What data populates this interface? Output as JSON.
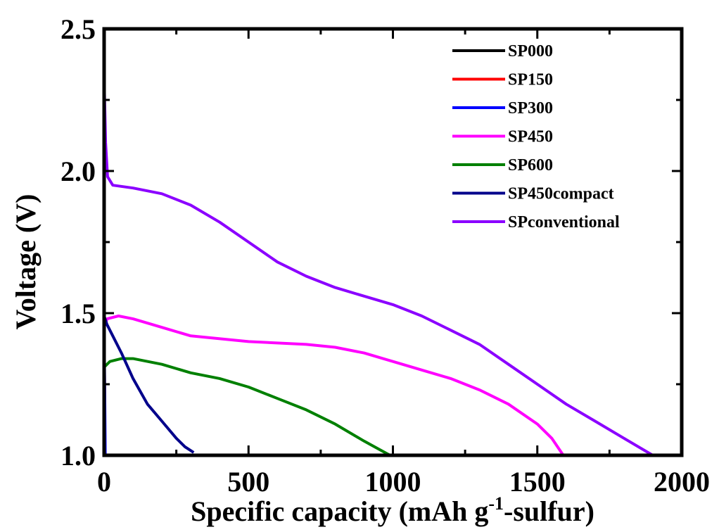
{
  "chart_data": {
    "type": "line",
    "xlabel_main": "Specific capacity (mAh g",
    "xlabel_sup": "-1",
    "xlabel_tail": "-sulfur)",
    "ylabel": "Voltage (V)",
    "xlim": [
      0,
      2000
    ],
    "ylim": [
      1.0,
      2.5
    ],
    "xticks": [
      0,
      500,
      1000,
      1500,
      2000
    ],
    "xtick_labels": [
      "0",
      "500",
      "1000",
      "1500",
      "2000"
    ],
    "yticks": [
      1.0,
      1.5,
      2.0,
      2.5
    ],
    "ytick_labels": [
      "1.0",
      "1.5",
      "2.0",
      "2.5"
    ],
    "grid": false,
    "legend_position": "top-right",
    "series": [
      {
        "name": "SP000",
        "color": "#000000",
        "points": [
          [
            0,
            1.5
          ],
          [
            1,
            1.2
          ],
          [
            2,
            1.0
          ]
        ]
      },
      {
        "name": "SP150",
        "color": "#ff0000",
        "points": [
          [
            0,
            1.45
          ],
          [
            2,
            1.2
          ],
          [
            3,
            1.0
          ]
        ]
      },
      {
        "name": "SP300",
        "color": "#0000ff",
        "points": [
          [
            0,
            1.45
          ],
          [
            2,
            1.25
          ],
          [
            4,
            1.0
          ]
        ]
      },
      {
        "name": "SP450",
        "color": "#ff00ff",
        "points": [
          [
            0,
            1.45
          ],
          [
            10,
            1.48
          ],
          [
            50,
            1.49
          ],
          [
            100,
            1.48
          ],
          [
            200,
            1.45
          ],
          [
            300,
            1.42
          ],
          [
            500,
            1.4
          ],
          [
            700,
            1.39
          ],
          [
            800,
            1.38
          ],
          [
            900,
            1.36
          ],
          [
            1000,
            1.33
          ],
          [
            1100,
            1.3
          ],
          [
            1200,
            1.27
          ],
          [
            1300,
            1.23
          ],
          [
            1400,
            1.18
          ],
          [
            1500,
            1.11
          ],
          [
            1550,
            1.06
          ],
          [
            1590,
            1.0
          ]
        ]
      },
      {
        "name": "SP600",
        "color": "#008000",
        "points": [
          [
            0,
            1.31
          ],
          [
            20,
            1.33
          ],
          [
            60,
            1.34
          ],
          [
            100,
            1.34
          ],
          [
            200,
            1.32
          ],
          [
            300,
            1.29
          ],
          [
            400,
            1.27
          ],
          [
            500,
            1.24
          ],
          [
            600,
            1.2
          ],
          [
            700,
            1.16
          ],
          [
            800,
            1.11
          ],
          [
            900,
            1.05
          ],
          [
            990,
            1.0
          ]
        ]
      },
      {
        "name": "SP450compact",
        "color": "#00008b",
        "points": [
          [
            0,
            1.49
          ],
          [
            10,
            1.46
          ],
          [
            30,
            1.42
          ],
          [
            60,
            1.36
          ],
          [
            100,
            1.27
          ],
          [
            150,
            1.18
          ],
          [
            200,
            1.12
          ],
          [
            250,
            1.06
          ],
          [
            280,
            1.03
          ],
          [
            310,
            1.01
          ]
        ]
      },
      {
        "name": "SPconventional",
        "color": "#8b00ff",
        "points": [
          [
            0,
            2.33
          ],
          [
            5,
            2.1
          ],
          [
            12,
            1.98
          ],
          [
            30,
            1.95
          ],
          [
            100,
            1.94
          ],
          [
            200,
            1.92
          ],
          [
            300,
            1.88
          ],
          [
            400,
            1.82
          ],
          [
            500,
            1.75
          ],
          [
            600,
            1.68
          ],
          [
            700,
            1.63
          ],
          [
            800,
            1.59
          ],
          [
            900,
            1.56
          ],
          [
            1000,
            1.53
          ],
          [
            1100,
            1.49
          ],
          [
            1200,
            1.44
          ],
          [
            1300,
            1.39
          ],
          [
            1400,
            1.32
          ],
          [
            1500,
            1.25
          ],
          [
            1600,
            1.18
          ],
          [
            1700,
            1.12
          ],
          [
            1800,
            1.06
          ],
          [
            1900,
            1.0
          ]
        ]
      }
    ]
  }
}
